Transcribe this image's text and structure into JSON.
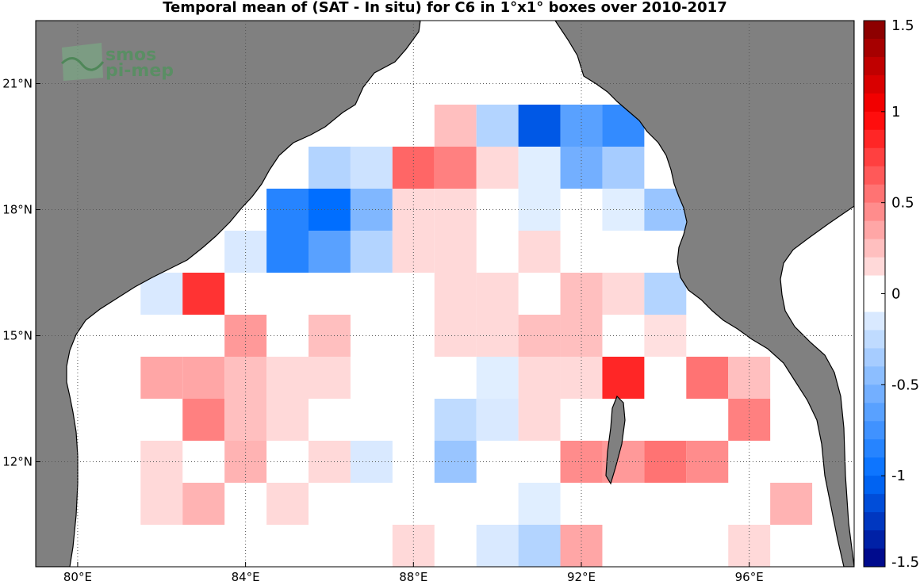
{
  "title": "Temporal mean of (SAT - In situ) for C6 in 1°x1° boxes over 2010-2017",
  "logo": {
    "line1": "smos",
    "line2": "pi-mep"
  },
  "axes": {
    "x_ticks": [
      {
        "lon": 80,
        "label": "80°E"
      },
      {
        "lon": 84,
        "label": "84°E"
      },
      {
        "lon": 88,
        "label": "88°E"
      },
      {
        "lon": 92,
        "label": "92°E"
      },
      {
        "lon": 96,
        "label": "96°E"
      }
    ],
    "y_ticks": [
      {
        "lat": 21,
        "label": "21°N"
      },
      {
        "lat": 18,
        "label": "18°N"
      },
      {
        "lat": 15,
        "label": "15°N"
      },
      {
        "lat": 12,
        "label": "12°N"
      }
    ]
  },
  "colorbar": {
    "range": [
      -1.5,
      1.5
    ],
    "ticks": [
      {
        "v": 1.5,
        "label": "1.5"
      },
      {
        "v": 1,
        "label": "1"
      },
      {
        "v": 0.5,
        "label": "0.5"
      },
      {
        "v": 0,
        "label": "0"
      },
      {
        "v": -0.5,
        "label": "-0.5"
      },
      {
        "v": -1,
        "label": "-1"
      },
      {
        "v": -1.5,
        "label": "-1.5"
      }
    ]
  },
  "colors": {
    "land": "#808080",
    "ocean": "#ffffff",
    "grid": "#555555"
  },
  "chart_data": {
    "type": "heatmap",
    "title": "Temporal mean of (SAT - In situ) for C6 in 1°x1° boxes over 2010-2017",
    "xlim": [
      79,
      98.5
    ],
    "ylim": [
      9.5,
      22.5
    ],
    "value_range": [
      -1.5,
      1.5
    ],
    "cells": [
      {
        "lon": 89,
        "lat": 20,
        "v": 0.25
      },
      {
        "lon": 90,
        "lat": 20,
        "v": -0.3
      },
      {
        "lon": 91,
        "lat": 20,
        "v": -1.1
      },
      {
        "lon": 92,
        "lat": 20,
        "v": -0.65
      },
      {
        "lon": 93,
        "lat": 20,
        "v": -0.8
      },
      {
        "lon": 86,
        "lat": 19,
        "v": -0.3
      },
      {
        "lon": 87,
        "lat": 19,
        "v": -0.2
      },
      {
        "lon": 88,
        "lat": 19,
        "v": 0.6
      },
      {
        "lon": 89,
        "lat": 19,
        "v": 0.5
      },
      {
        "lon": 90,
        "lat": 19,
        "v": 0.15
      },
      {
        "lon": 91,
        "lat": 19,
        "v": -0.12
      },
      {
        "lon": 92,
        "lat": 19,
        "v": -0.55
      },
      {
        "lon": 93,
        "lat": 19,
        "v": -0.35
      },
      {
        "lon": 85,
        "lat": 18,
        "v": -0.85
      },
      {
        "lon": 86,
        "lat": 18,
        "v": -1.0
      },
      {
        "lon": 87,
        "lat": 18,
        "v": -0.5
      },
      {
        "lon": 88,
        "lat": 18,
        "v": 0.15
      },
      {
        "lon": 89,
        "lat": 18,
        "v": 0.15
      },
      {
        "lon": 91,
        "lat": 18,
        "v": -0.12
      },
      {
        "lon": 93,
        "lat": 18,
        "v": -0.12
      },
      {
        "lon": 94,
        "lat": 18,
        "v": -0.4
      },
      {
        "lon": 84,
        "lat": 17,
        "v": -0.15
      },
      {
        "lon": 85,
        "lat": 17,
        "v": -0.85
      },
      {
        "lon": 86,
        "lat": 17,
        "v": -0.65
      },
      {
        "lon": 87,
        "lat": 17,
        "v": -0.3
      },
      {
        "lon": 88,
        "lat": 17,
        "v": 0.15
      },
      {
        "lon": 89,
        "lat": 17,
        "v": 0.15
      },
      {
        "lon": 91,
        "lat": 17,
        "v": 0.15
      },
      {
        "lon": 82,
        "lat": 16,
        "v": -0.15
      },
      {
        "lon": 83,
        "lat": 16,
        "v": 0.8
      },
      {
        "lon": 89,
        "lat": 16,
        "v": 0.15
      },
      {
        "lon": 90,
        "lat": 16,
        "v": 0.15
      },
      {
        "lon": 92,
        "lat": 16,
        "v": 0.25
      },
      {
        "lon": 93,
        "lat": 16,
        "v": 0.15
      },
      {
        "lon": 94,
        "lat": 16,
        "v": -0.3
      },
      {
        "lon": 84,
        "lat": 15,
        "v": 0.4
      },
      {
        "lon": 86,
        "lat": 15,
        "v": 0.25
      },
      {
        "lon": 89,
        "lat": 15,
        "v": 0.15
      },
      {
        "lon": 90,
        "lat": 15,
        "v": 0.15
      },
      {
        "lon": 91,
        "lat": 15,
        "v": 0.25
      },
      {
        "lon": 92,
        "lat": 15,
        "v": 0.25
      },
      {
        "lon": 94,
        "lat": 15,
        "v": 0.12
      },
      {
        "lon": 82,
        "lat": 14,
        "v": 0.35
      },
      {
        "lon": 83,
        "lat": 14,
        "v": 0.35
      },
      {
        "lon": 84,
        "lat": 14,
        "v": 0.25
      },
      {
        "lon": 85,
        "lat": 14,
        "v": 0.15
      },
      {
        "lon": 86,
        "lat": 14,
        "v": 0.15
      },
      {
        "lon": 90,
        "lat": 14,
        "v": -0.12
      },
      {
        "lon": 91,
        "lat": 14,
        "v": 0.15
      },
      {
        "lon": 92,
        "lat": 14,
        "v": 0.15
      },
      {
        "lon": 93,
        "lat": 14,
        "v": 0.85
      },
      {
        "lon": 95,
        "lat": 14,
        "v": 0.55
      },
      {
        "lon": 96,
        "lat": 14,
        "v": 0.25
      },
      {
        "lon": 83,
        "lat": 13,
        "v": 0.5
      },
      {
        "lon": 84,
        "lat": 13,
        "v": 0.25
      },
      {
        "lon": 85,
        "lat": 13,
        "v": 0.15
      },
      {
        "lon": 89,
        "lat": 13,
        "v": -0.25
      },
      {
        "lon": 90,
        "lat": 13,
        "v": -0.15
      },
      {
        "lon": 91,
        "lat": 13,
        "v": 0.15
      },
      {
        "lon": 96,
        "lat": 13,
        "v": 0.5
      },
      {
        "lon": 82,
        "lat": 12,
        "v": 0.15
      },
      {
        "lon": 84,
        "lat": 12,
        "v": 0.3
      },
      {
        "lon": 86,
        "lat": 12,
        "v": 0.15
      },
      {
        "lon": 87,
        "lat": 12,
        "v": -0.15
      },
      {
        "lon": 89,
        "lat": 12,
        "v": -0.4
      },
      {
        "lon": 92,
        "lat": 12,
        "v": 0.45
      },
      {
        "lon": 93,
        "lat": 12,
        "v": 0.4
      },
      {
        "lon": 94,
        "lat": 12,
        "v": 0.55
      },
      {
        "lon": 95,
        "lat": 12,
        "v": 0.45
      },
      {
        "lon": 82,
        "lat": 11,
        "v": 0.15
      },
      {
        "lon": 83,
        "lat": 11,
        "v": 0.3
      },
      {
        "lon": 85,
        "lat": 11,
        "v": 0.15
      },
      {
        "lon": 91,
        "lat": 11,
        "v": -0.12
      },
      {
        "lon": 97,
        "lat": 11,
        "v": 0.3
      },
      {
        "lon": 88,
        "lat": 10,
        "v": 0.15
      },
      {
        "lon": 90,
        "lat": 10,
        "v": -0.15
      },
      {
        "lon": 91,
        "lat": 10,
        "v": -0.3
      },
      {
        "lon": 92,
        "lat": 10,
        "v": 0.35
      },
      {
        "lon": 96,
        "lat": 10,
        "v": 0.15
      }
    ]
  }
}
